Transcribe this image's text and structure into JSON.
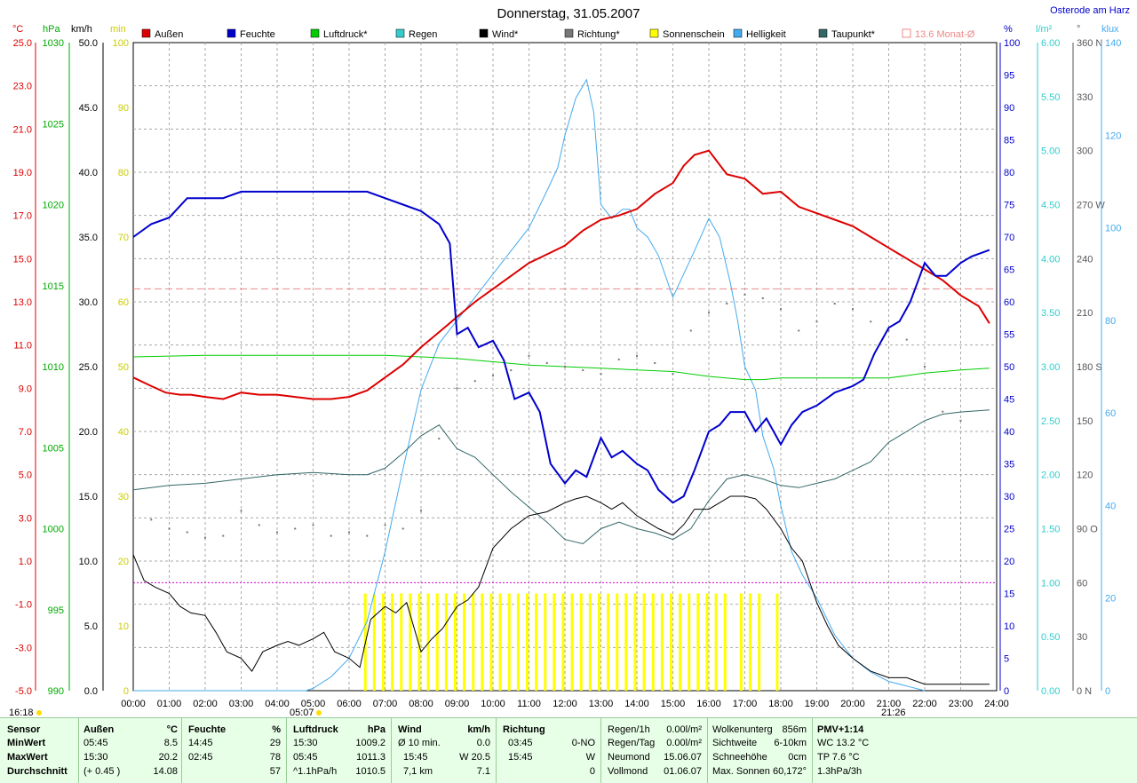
{
  "header": {
    "title": "Donnerstag, 31.05.2007",
    "location": "Osterode am Harz"
  },
  "axis_units": {
    "temp": "°C",
    "pressure": "hPa",
    "wind": "km/h",
    "sun": "min",
    "humidity": "%",
    "rain": "l/m²",
    "direction": "°",
    "lux": "klux"
  },
  "colors": {
    "temp": "#dd0000",
    "humidity": "#0000cc",
    "pressure": "#00cc00",
    "rain": "#33cccc",
    "wind": "#000000",
    "direction": "#777777",
    "sun": "#ffff00",
    "lux": "#44aaee",
    "dew": "#336666",
    "monthavg": "#ee8888",
    "grid": "#aaaaaa"
  },
  "time_marks": {
    "sunrise": "05:07",
    "sunset": "21:26",
    "sun_duration": "16:18"
  },
  "chart_data": {
    "type": "line",
    "x_label": "",
    "x_ticks": [
      "00:00",
      "01:00",
      "02:00",
      "03:00",
      "04:00",
      "05:00",
      "06:00",
      "07:00",
      "08:00",
      "09:00",
      "10:00",
      "11:00",
      "12:00",
      "13:00",
      "14:00",
      "15:00",
      "16:00",
      "17:00",
      "18:00",
      "19:00",
      "20:00",
      "21:00",
      "22:00",
      "23:00",
      "24:00"
    ],
    "xlim": [
      0,
      24
    ],
    "legend": [
      {
        "key": "temp",
        "label": "Außen"
      },
      {
        "key": "humidity",
        "label": "Feuchte"
      },
      {
        "key": "pressure",
        "label": "Luftdruck*"
      },
      {
        "key": "rain",
        "label": "Regen"
      },
      {
        "key": "wind",
        "label": "Wind*"
      },
      {
        "key": "direction",
        "label": "Richtung*"
      },
      {
        "key": "sun",
        "label": "Sonnenschein"
      },
      {
        "key": "lux",
        "label": "Helligkeit"
      },
      {
        "key": "dew",
        "label": "Taupunkt*"
      },
      {
        "key": "monthavg",
        "label": "13.6 Monat-Ø"
      }
    ],
    "axes": {
      "temp": {
        "min": -5,
        "max": 25,
        "ticks": [
          "25.0",
          "23.0",
          "21.0",
          "19.0",
          "17.0",
          "15.0",
          "13.0",
          "11.0",
          "9.0",
          "7.0",
          "5.0",
          "3.0",
          "1.0",
          "-1.0",
          "-3.0",
          "-5.0"
        ]
      },
      "pressure": {
        "min": 990,
        "max": 1030,
        "ticks": [
          "1030",
          "1025",
          "1020",
          "1015",
          "1010",
          "1005",
          "1000",
          "995",
          "990"
        ]
      },
      "wind": {
        "min": 0,
        "max": 50,
        "ticks": [
          "50.0",
          "45.0",
          "40.0",
          "35.0",
          "30.0",
          "25.0",
          "20.0",
          "15.0",
          "10.0",
          "5.0",
          "0.0"
        ]
      },
      "sun": {
        "min": 0,
        "max": 100,
        "ticks": [
          "100",
          "90",
          "80",
          "70",
          "60",
          "50",
          "40",
          "30",
          "20",
          "10",
          "0"
        ]
      },
      "humidity": {
        "min": 0,
        "max": 100,
        "ticks": [
          "100",
          "95",
          "90",
          "85",
          "80",
          "75",
          "70",
          "65",
          "60",
          "55",
          "50",
          "45",
          "40",
          "35",
          "30",
          "25",
          "20",
          "15",
          "10",
          "5",
          "0"
        ]
      },
      "rain": {
        "min": 0,
        "max": 6,
        "ticks": [
          "6.00",
          "5.50",
          "5.00",
          "4.50",
          "4.00",
          "3.50",
          "3.00",
          "2.50",
          "2.00",
          "1.50",
          "1.00",
          "0.50",
          "0.00"
        ]
      },
      "direction": {
        "min": 0,
        "max": 360,
        "ticks": [
          "360 N",
          "330",
          "300",
          "270 W",
          "240",
          "210",
          "180 S",
          "150",
          "120",
          "90 O",
          "60",
          "30",
          "0 N"
        ]
      },
      "lux": {
        "min": 0,
        "max": 140,
        "ticks": [
          "140",
          "120",
          "100",
          "80",
          "60",
          "40",
          "20",
          "0"
        ]
      }
    },
    "month_avg_temp": 13.6,
    "series": [
      {
        "key": "temp",
        "axis": "temp",
        "width": 2,
        "x": [
          0,
          0.5,
          0.9,
          1.3,
          1.6,
          2.0,
          2.5,
          3.0,
          3.5,
          4.0,
          4.5,
          5.0,
          5.5,
          6.0,
          6.5,
          7.0,
          7.5,
          8.0,
          8.5,
          9.0,
          9.5,
          10.0,
          10.5,
          11.0,
          11.5,
          12.0,
          12.5,
          13.0,
          13.5,
          14.0,
          14.5,
          15.0,
          15.3,
          15.6,
          16.0,
          16.5,
          17.0,
          17.5,
          18.0,
          18.5,
          19.0,
          19.5,
          20.0,
          20.5,
          21.0,
          21.5,
          22.0,
          22.5,
          23.0,
          23.5,
          23.8
        ],
        "y": [
          9.5,
          9.1,
          8.8,
          8.7,
          8.7,
          8.6,
          8.5,
          8.8,
          8.7,
          8.7,
          8.6,
          8.5,
          8.5,
          8.6,
          8.9,
          9.5,
          10.1,
          10.9,
          11.6,
          12.3,
          13.0,
          13.6,
          14.2,
          14.8,
          15.2,
          15.6,
          16.3,
          16.8,
          17.0,
          17.3,
          18.0,
          18.5,
          19.3,
          19.8,
          20.0,
          18.9,
          18.7,
          18.0,
          18.1,
          17.4,
          17.1,
          16.8,
          16.5,
          16.0,
          15.5,
          15.0,
          14.5,
          14.0,
          13.3,
          12.8,
          12.0
        ]
      },
      {
        "key": "humidity",
        "axis": "humidity",
        "width": 2,
        "x": [
          0,
          0.5,
          1.0,
          1.5,
          2.0,
          2.5,
          3.0,
          3.5,
          4.0,
          4.5,
          5.0,
          5.5,
          6.0,
          6.5,
          7.0,
          7.5,
          8.0,
          8.5,
          8.8,
          9.0,
          9.3,
          9.6,
          10.0,
          10.3,
          10.6,
          11.0,
          11.3,
          11.6,
          12.0,
          12.3,
          12.6,
          13.0,
          13.3,
          13.6,
          14.0,
          14.3,
          14.6,
          15.0,
          15.3,
          15.6,
          16.0,
          16.3,
          16.6,
          17.0,
          17.3,
          17.6,
          18.0,
          18.3,
          18.6,
          19.0,
          19.5,
          20.0,
          20.3,
          20.6,
          21.0,
          21.3,
          21.6,
          22.0,
          22.3,
          22.6,
          23.0,
          23.3,
          23.8
        ],
        "y": [
          70,
          72,
          73,
          76,
          76,
          76,
          77,
          77,
          77,
          77,
          77,
          77,
          77,
          77,
          76,
          75,
          74,
          72,
          69,
          55,
          56,
          53,
          54,
          51,
          45,
          46,
          43,
          35,
          32,
          34,
          33,
          39,
          36,
          37,
          35,
          34,
          31,
          29,
          30,
          34,
          40,
          41,
          43,
          43,
          40,
          42,
          38,
          41,
          43,
          44,
          46,
          47,
          48,
          52,
          56,
          57,
          60,
          66,
          64,
          64,
          66,
          67,
          68
        ]
      },
      {
        "key": "pressure",
        "axis": "pressure",
        "width": 1,
        "x": [
          0,
          2,
          4,
          6,
          7,
          8,
          9,
          10,
          11,
          12,
          13,
          14,
          15,
          16,
          17,
          17.5,
          18,
          19,
          20,
          21,
          22,
          23,
          23.8
        ],
        "y": [
          1010.6,
          1010.7,
          1010.7,
          1010.7,
          1010.7,
          1010.6,
          1010.5,
          1010.3,
          1010.1,
          1010.0,
          1009.9,
          1009.8,
          1009.7,
          1009.4,
          1009.2,
          1009.2,
          1009.3,
          1009.3,
          1009.3,
          1009.3,
          1009.6,
          1009.8,
          1009.9
        ]
      },
      {
        "key": "wind",
        "axis": "wind",
        "width": 1,
        "x": [
          0,
          0.3,
          0.6,
          1.0,
          1.3,
          1.6,
          2.0,
          2.3,
          2.6,
          3.0,
          3.3,
          3.6,
          4.0,
          4.3,
          4.6,
          5.0,
          5.3,
          5.6,
          6.0,
          6.3,
          6.6,
          7.0,
          7.3,
          7.6,
          8.0,
          8.3,
          8.6,
          9.0,
          9.3,
          9.6,
          10.0,
          10.5,
          11.0,
          11.5,
          12.0,
          12.3,
          12.6,
          13.0,
          13.3,
          13.6,
          14.0,
          14.3,
          14.6,
          15.0,
          15.3,
          15.6,
          16.0,
          16.3,
          16.6,
          17.0,
          17.3,
          17.6,
          18.0,
          18.3,
          18.6,
          19.0,
          19.3,
          19.6,
          20.0,
          20.5,
          21.0,
          21.5,
          22.0,
          22.5,
          23.0,
          23.5,
          23.8
        ],
        "y": [
          10.5,
          8.5,
          8.0,
          7.5,
          6.5,
          6.0,
          5.8,
          4.5,
          3.0,
          2.5,
          1.5,
          3.0,
          3.5,
          3.8,
          3.5,
          4.0,
          4.5,
          3.0,
          2.5,
          1.8,
          5.5,
          6.5,
          6.0,
          6.8,
          3.0,
          4.0,
          4.8,
          6.5,
          7.0,
          8.0,
          11.0,
          12.5,
          13.5,
          13.8,
          14.5,
          14.8,
          15.0,
          14.5,
          14.0,
          14.5,
          13.5,
          13.0,
          12.5,
          12.0,
          12.8,
          14.0,
          14.0,
          14.5,
          15.0,
          15.0,
          14.8,
          14.0,
          12.5,
          11.0,
          10.0,
          6.8,
          5.0,
          3.5,
          2.5,
          1.5,
          1.0,
          1.0,
          0.5,
          0.5,
          0.5,
          0.5,
          0.5
        ]
      },
      {
        "key": "dew",
        "axis": "temp",
        "width": 1,
        "x": [
          0,
          1,
          2,
          3,
          4,
          5,
          6,
          6.5,
          7,
          7.5,
          8,
          8.5,
          9,
          9.5,
          10,
          10.5,
          11,
          11.5,
          12,
          12.5,
          13,
          13.5,
          14,
          14.5,
          15,
          15.5,
          16,
          16.5,
          17,
          17.5,
          18,
          18.5,
          19,
          19.5,
          20,
          20.5,
          21,
          21.5,
          22,
          22.5,
          23,
          23.8
        ],
        "y": [
          4.3,
          4.5,
          4.6,
          4.8,
          5.0,
          5.1,
          5.0,
          5.0,
          5.3,
          6.0,
          6.8,
          7.3,
          6.2,
          5.8,
          5.0,
          4.2,
          3.5,
          2.8,
          2.0,
          1.8,
          2.5,
          2.8,
          2.5,
          2.3,
          2.0,
          2.5,
          3.8,
          4.8,
          5.0,
          4.8,
          4.5,
          4.4,
          4.6,
          4.8,
          5.2,
          5.6,
          6.5,
          7.0,
          7.5,
          7.8,
          7.9,
          8.0
        ]
      },
      {
        "key": "lux",
        "axis": "lux",
        "width": 1,
        "x": [
          0,
          4.8,
          5.0,
          5.5,
          6.0,
          6.5,
          7.0,
          7.5,
          8.0,
          8.5,
          9.0,
          9.5,
          10.0,
          10.5,
          11.0,
          11.5,
          11.8,
          12.0,
          12.3,
          12.6,
          12.8,
          13.0,
          13.3,
          13.6,
          13.8,
          14.0,
          14.3,
          14.6,
          15.0,
          15.3,
          15.6,
          16.0,
          16.3,
          16.6,
          16.8,
          17.0,
          17.3,
          17.5,
          17.8,
          18.0,
          18.3,
          18.6,
          19.0,
          19.5,
          20.0,
          20.5,
          21.0,
          21.5,
          22.0
        ],
        "y": [
          0,
          0,
          0.5,
          3,
          7,
          15,
          30,
          48,
          65,
          75,
          80,
          85,
          90,
          95,
          100,
          108,
          113,
          120,
          128,
          132,
          125,
          105,
          102,
          104,
          104,
          100,
          98,
          94,
          85,
          90,
          95,
          102,
          98,
          88,
          80,
          70,
          65,
          55,
          48,
          40,
          30,
          25,
          20,
          12,
          7,
          4,
          2,
          1,
          0
        ]
      },
      {
        "key": "direction",
        "axis": "direction",
        "dots": true,
        "x": [
          0.5,
          1.0,
          1.5,
          2.0,
          2.5,
          3.0,
          3.5,
          4.0,
          4.5,
          5.0,
          5.5,
          6.0,
          6.5,
          7.0,
          7.5,
          8.0,
          8.5,
          9.0,
          9.5,
          10.0,
          10.5,
          11.0,
          11.5,
          12.0,
          12.5,
          13.0,
          13.5,
          14.0,
          14.5,
          15.0,
          15.5,
          16.0,
          16.5,
          17.0,
          17.5,
          18.0,
          18.5,
          19.0,
          19.5,
          20.0,
          20.5,
          21.0,
          21.5,
          22.0,
          22.5,
          23.0
        ],
        "y": [
          95,
          90,
          88,
          85,
          86,
          100,
          92,
          88,
          90,
          92,
          86,
          88,
          86,
          92,
          90,
          100,
          140,
          168,
          172,
          175,
          178,
          186,
          182,
          180,
          178,
          176,
          184,
          186,
          182,
          176,
          200,
          210,
          215,
          220,
          218,
          212,
          200,
          205,
          215,
          212,
          205,
          200,
          195,
          180,
          155,
          150
        ]
      }
    ],
    "sunshine": {
      "axis": "sun",
      "value": 15,
      "times": [
        6.45,
        6.7,
        6.95,
        7.2,
        7.45,
        7.7,
        7.95,
        8.2,
        8.45,
        8.7,
        8.95,
        9.2,
        9.45,
        9.7,
        9.95,
        10.2,
        10.45,
        10.7,
        10.95,
        11.2,
        11.45,
        11.7,
        11.95,
        12.2,
        12.45,
        12.7,
        12.95,
        13.2,
        13.45,
        13.7,
        13.95,
        14.2,
        14.45,
        14.7,
        14.95,
        15.2,
        15.45,
        15.7,
        15.95,
        16.2,
        16.45,
        16.9,
        17.15,
        17.4,
        17.9
      ]
    }
  },
  "footer": {
    "sensor": {
      "label": "Sensor",
      "rows": [
        "MinWert",
        "MaxWert",
        "Durchschnitt"
      ]
    },
    "aussen": {
      "label": "Außen",
      "unit": "°C",
      "rows": [
        [
          "05:45",
          "8.5"
        ],
        [
          "15:30",
          "20.2"
        ],
        [
          "(+ 0.45 )",
          "14.08"
        ]
      ]
    },
    "feuchte": {
      "label": "Feuchte",
      "unit": "%",
      "rows": [
        [
          "14:45",
          "29"
        ],
        [
          "02:45",
          "78"
        ],
        [
          "",
          "57"
        ]
      ]
    },
    "luftdruck": {
      "label": "Luftdruck",
      "unit": "hPa",
      "rows": [
        [
          "15:30",
          "1009.2"
        ],
        [
          "05:45",
          "1011.3"
        ],
        [
          "^1.1hPa/h",
          "1010.5"
        ]
      ]
    },
    "wind": {
      "label": "Wind",
      "unit": "km/h",
      "rows": [
        [
          "Ø 10 min.",
          "0.0"
        ],
        [
          "15:45",
          "W 20.5"
        ],
        [
          "7,1 km",
          "7.1"
        ]
      ]
    },
    "richtung": {
      "label": "Richtung",
      "rows": [
        [
          "03:45",
          "0-NO"
        ],
        [
          "15:45",
          "W"
        ],
        [
          "",
          "0"
        ]
      ]
    },
    "regen": {
      "rows": [
        [
          "Regen/1h",
          "0.00l/m²"
        ],
        [
          "Regen/Tag",
          "0.00l/m²"
        ],
        [
          "Neumond",
          "15.06.07"
        ],
        [
          "Vollmond",
          "01.06.07"
        ]
      ]
    },
    "wolken": {
      "rows": [
        [
          "Wolkenunterg",
          "856m"
        ],
        [
          "Sichtweite",
          "6-10km"
        ],
        [
          "Schneehöhe",
          "0cm"
        ],
        [
          "Max. Sonnen",
          "60,172°"
        ]
      ]
    },
    "pmv": {
      "rows": [
        "PMV+1:14",
        "WC 13.2 °C",
        "TP 7.6 °C",
        "1.3hPa/3h"
      ]
    }
  }
}
